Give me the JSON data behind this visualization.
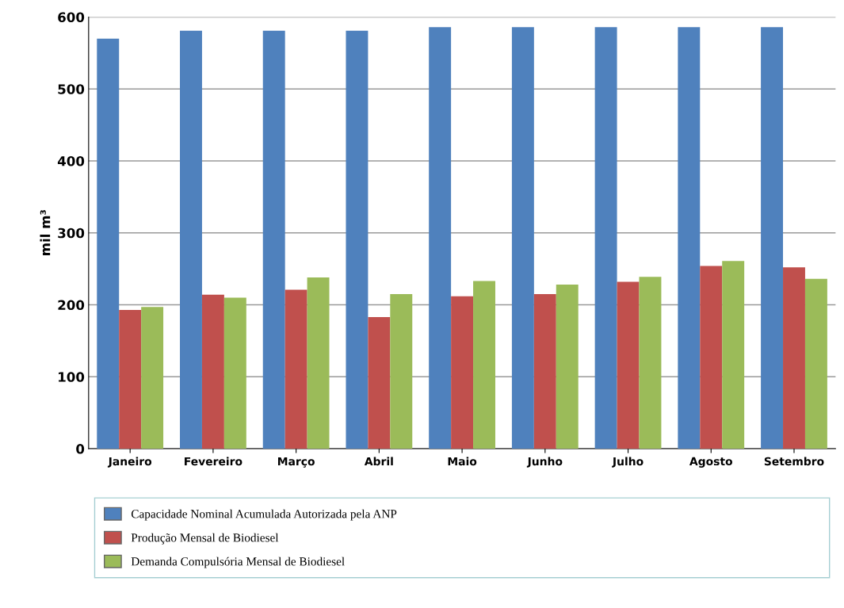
{
  "chart_data": {
    "type": "bar",
    "ylabel": "mil m³",
    "categories": [
      "Janeiro",
      "Fevereiro",
      "Março",
      "Abril",
      "Maio",
      "Junho",
      "Julho",
      "Agosto",
      "Setembro"
    ],
    "series": [
      {
        "name": "Capacidade Nominal Acumulada Autorizada pela ANP",
        "color": "#4f81bd",
        "values": [
          570,
          581,
          581,
          581,
          586,
          586,
          586,
          586,
          586
        ]
      },
      {
        "name": "Produção Mensal de Biodiesel",
        "color": "#c0504d",
        "values": [
          193,
          214,
          221,
          183,
          212,
          215,
          232,
          254,
          252
        ]
      },
      {
        "name": "Demanda Compulsória Mensal de Biodiesel",
        "color": "#9bbb59",
        "values": [
          197,
          210,
          238,
          215,
          233,
          228,
          239,
          261,
          236
        ]
      }
    ],
    "ylim": [
      0,
      600
    ],
    "yticks": [
      0,
      100,
      200,
      300,
      400,
      500,
      600
    ],
    "grid": "y",
    "legend": "bottom"
  }
}
